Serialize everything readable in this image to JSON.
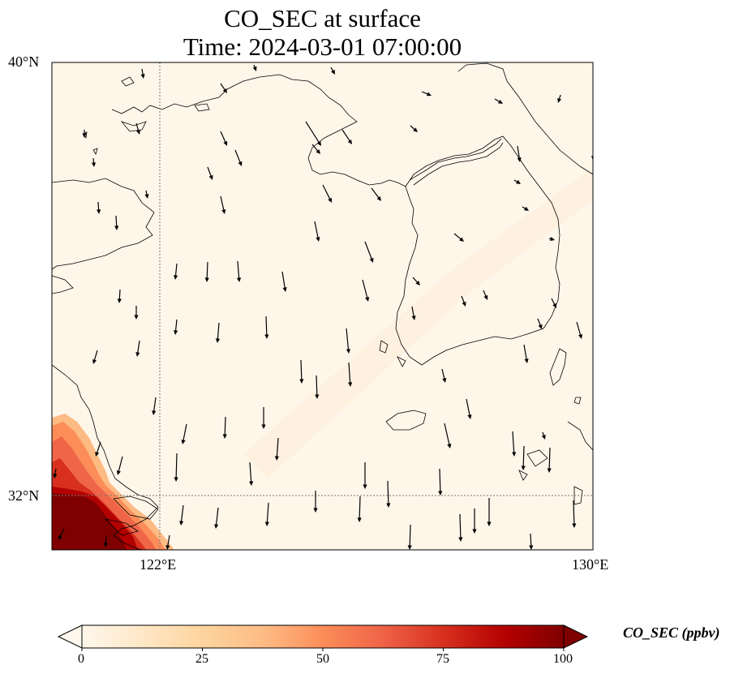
{
  "title": {
    "line1": "CO_SEC at surface",
    "line2": "Time: 2024-03-01 07:00:00"
  },
  "axes": {
    "lat_labels": [
      "40°N",
      "32°N"
    ],
    "lon_labels": [
      "122°E",
      "130°E"
    ],
    "lon_range": [
      120,
      130
    ],
    "lat_range": [
      31,
      40
    ],
    "gridlines": {
      "lon": 122,
      "lat": 32,
      "style": "dotted"
    }
  },
  "colorbar": {
    "label": "CO_SEC (ppbv)",
    "ticks": [
      "0",
      "25",
      "50",
      "75",
      "100"
    ],
    "range": [
      0,
      100
    ],
    "colormap": "OrRd",
    "extend": "both",
    "colors": [
      "#fff7ec",
      "#fee8c8",
      "#fdd49e",
      "#fdbb84",
      "#fc8d59",
      "#ef6548",
      "#d7301f",
      "#b30000",
      "#7f0000"
    ]
  },
  "chart_data": {
    "type": "heatmap",
    "variable": "CO_SEC",
    "units": "ppbv",
    "background_value": 3,
    "high_region": {
      "description": "southwest corner near Yangtze estuary",
      "peak_value": 100
    },
    "wind": "arrows mostly pointing south / south-southeast"
  }
}
